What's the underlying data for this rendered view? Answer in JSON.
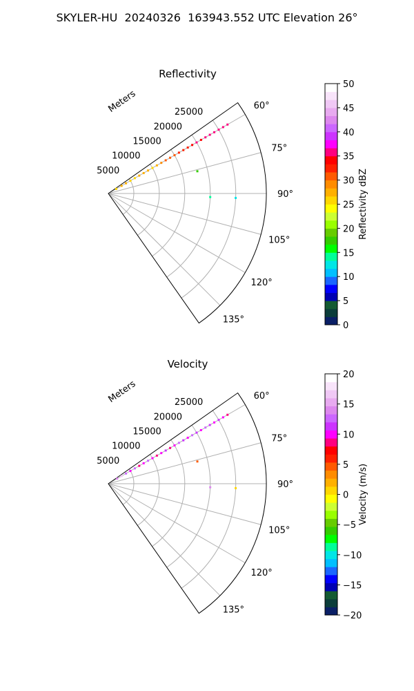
{
  "figure_title": "SKYLER-HU  20240326  163943.552 UTC Elevation 26°",
  "chart_data": [
    {
      "type": "scatter",
      "projection": "polar-sector",
      "title": "Reflectivity",
      "radial_label": "Meters",
      "radial_ticks": [
        5000,
        10000,
        15000,
        20000,
        25000
      ],
      "radial_range": [
        0,
        31000
      ],
      "angle_ticks": [
        "60°",
        "75°",
        "90°",
        "105°",
        "120°",
        "135°"
      ],
      "angle_range_deg": [
        55,
        145
      ],
      "grid": true,
      "colorbar": {
        "label": "Reflectivity dBZ",
        "range": [
          0,
          50
        ],
        "ticks": [
          "0",
          "5",
          "10",
          "15",
          "20",
          "25",
          "30",
          "35",
          "40",
          "45",
          "50"
        ],
        "colors": [
          "#0a1f66",
          "#0b3d3a",
          "#145a32",
          "#0000b3",
          "#0000ff",
          "#1a66ff",
          "#00bfff",
          "#00e6e6",
          "#00ff99",
          "#00ff00",
          "#33cc00",
          "#66cc00",
          "#99ff00",
          "#ccff33",
          "#ffff00",
          "#ffd700",
          "#ffb000",
          "#ff8c00",
          "#ff5a00",
          "#ff2000",
          "#ff0000",
          "#ff0080",
          "#ff00ff",
          "#cc33ff",
          "#cc66ff",
          "#dd88ee",
          "#e8aaf0",
          "#f0c8f5",
          "#f8e4fa",
          "#ffffff"
        ]
      },
      "series": [
        {
          "azimuth_deg": 60,
          "points": [
            [
              1800,
              26
            ],
            [
              3000,
              28
            ],
            [
              4000,
              27
            ],
            [
              5000,
              25
            ],
            [
              6000,
              26
            ],
            [
              7000,
              27
            ],
            [
              8000,
              28
            ],
            [
              9000,
              27
            ],
            [
              10000,
              26
            ],
            [
              11000,
              28
            ],
            [
              12000,
              29
            ],
            [
              13000,
              30
            ],
            [
              14000,
              30
            ],
            [
              15000,
              31
            ],
            [
              16000,
              32
            ],
            [
              17000,
              33
            ],
            [
              18000,
              33
            ],
            [
              19000,
              34
            ],
            [
              20000,
              35
            ],
            [
              21000,
              34
            ],
            [
              22000,
              35
            ],
            [
              23000,
              36
            ],
            [
              24000,
              35
            ],
            [
              25000,
              36
            ],
            [
              26000,
              36
            ],
            [
              27000,
              35
            ]
          ]
        },
        {
          "azimuth_deg": 76,
          "points": [
            [
              18000,
              18
            ]
          ]
        },
        {
          "azimuth_deg": 92,
          "points": [
            [
              20000,
              14
            ],
            [
              25000,
              13
            ]
          ]
        }
      ]
    },
    {
      "type": "scatter",
      "projection": "polar-sector",
      "title": "Velocity",
      "radial_label": "Meters",
      "radial_ticks": [
        5000,
        10000,
        15000,
        20000,
        25000
      ],
      "radial_range": [
        0,
        31000
      ],
      "angle_ticks": [
        "60°",
        "75°",
        "90°",
        "105°",
        "120°",
        "135°"
      ],
      "angle_range_deg": [
        55,
        145
      ],
      "grid": true,
      "colorbar": {
        "label": "Velocity (m/s)",
        "range": [
          -20,
          20
        ],
        "ticks": [
          "−20",
          "−15",
          "−10",
          "−5",
          "0",
          "5",
          "10",
          "15",
          "20"
        ],
        "colors": [
          "#0a1f66",
          "#0b3d3a",
          "#145a32",
          "#0000b3",
          "#0000ff",
          "#1a66ff",
          "#00bfff",
          "#00e6e6",
          "#00ff99",
          "#00ff00",
          "#33cc00",
          "#66cc00",
          "#99ff00",
          "#ccff33",
          "#ffff00",
          "#ffd700",
          "#ffb000",
          "#ff8c00",
          "#ff5a00",
          "#ff2000",
          "#ff0000",
          "#ff0080",
          "#ff00ff",
          "#cc33ff",
          "#cc66ff",
          "#dd88ee",
          "#e8aaf0",
          "#f0c8f5",
          "#f8e4fa",
          "#ffffff"
        ]
      },
      "series": [
        {
          "azimuth_deg": 60,
          "points": [
            [
              2000,
              14
            ],
            [
              3000,
              16
            ],
            [
              4000,
              12
            ],
            [
              5000,
              10
            ],
            [
              6000,
              12
            ],
            [
              7000,
              8
            ],
            [
              8000,
              10
            ],
            [
              9000,
              12
            ],
            [
              10000,
              10
            ],
            [
              11000,
              9
            ],
            [
              12000,
              10
            ],
            [
              13000,
              11
            ],
            [
              14000,
              9
            ],
            [
              15000,
              10
            ],
            [
              16000,
              12
            ],
            [
              17000,
              11
            ],
            [
              18000,
              10
            ],
            [
              19000,
              12
            ],
            [
              20000,
              11
            ],
            [
              21000,
              10
            ],
            [
              22000,
              12
            ],
            [
              23000,
              11
            ],
            [
              24000,
              10
            ],
            [
              25000,
              11
            ],
            [
              26000,
              10
            ],
            [
              27000,
              9
            ]
          ]
        },
        {
          "azimuth_deg": 76,
          "points": [
            [
              18000,
              4
            ]
          ]
        },
        {
          "azimuth_deg": 92,
          "points": [
            [
              20000,
              14
            ],
            [
              25000,
              1
            ]
          ]
        }
      ]
    }
  ]
}
